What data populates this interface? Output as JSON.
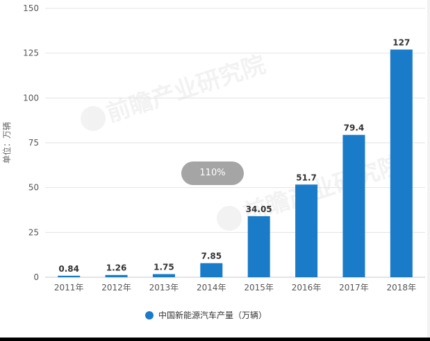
{
  "chart_data": {
    "type": "bar",
    "categories": [
      "2011年",
      "2012年",
      "2013年",
      "2014年",
      "2015年",
      "2016年",
      "2017年",
      "2018年"
    ],
    "series": [
      {
        "name": "中国新能源汽车产量（万辆）",
        "values": [
          0.84,
          1.26,
          1.75,
          7.85,
          34.05,
          51.7,
          79.4,
          127
        ],
        "labels": [
          "0.84",
          "1.26",
          "1.75",
          "7.85",
          "34.05",
          "51.7",
          "79.4",
          "127"
        ]
      }
    ],
    "ylabel": "单位：万辆",
    "ylim": [
      0,
      150
    ],
    "yticks": [
      0,
      25,
      50,
      75,
      100,
      125,
      150
    ],
    "grid": true,
    "legend_position": "bottom",
    "bar_color": "#1a7bc8"
  },
  "overlay": {
    "zoom_label": "110%"
  },
  "watermark": {
    "text": "前瞻产业研究院"
  }
}
